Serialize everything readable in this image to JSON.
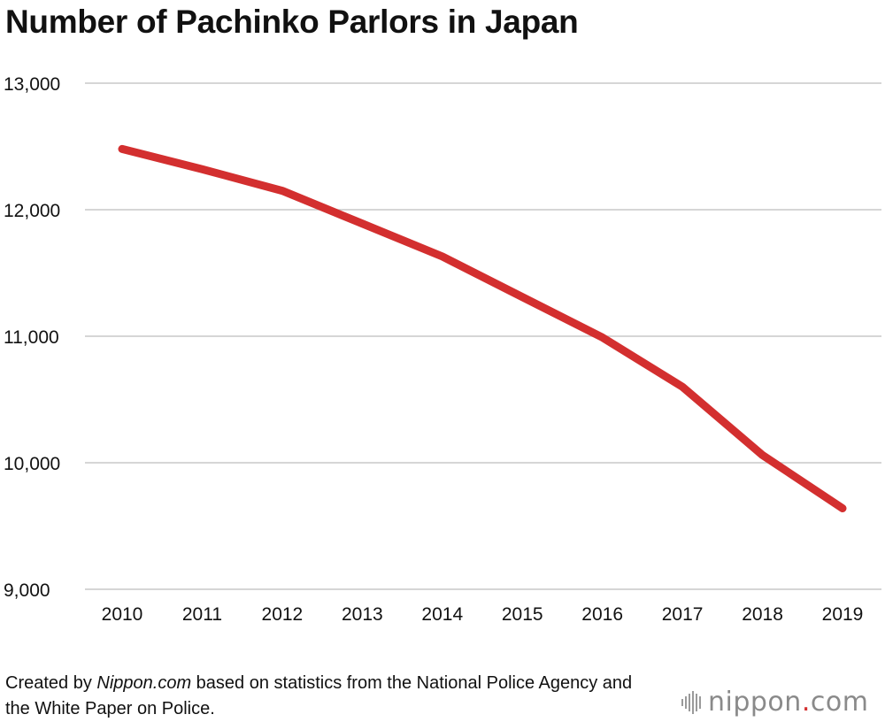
{
  "chart_data": {
    "type": "line",
    "title": "Number of Pachinko Parlors in Japan",
    "xlabel": "",
    "ylabel": "",
    "x": [
      "2010",
      "2011",
      "2012",
      "2013",
      "2014",
      "2015",
      "2016",
      "2017",
      "2018",
      "2019"
    ],
    "series": [
      {
        "values": [
          12480,
          12320,
          12150,
          11890,
          11630,
          11310,
          10990,
          10600,
          10060,
          9640
        ]
      }
    ],
    "ylim": [
      9000,
      13000
    ],
    "yticks": [
      {
        "value": 9000,
        "label": "9,000"
      },
      {
        "value": 10000,
        "label": "10,000"
      },
      {
        "value": 11000,
        "label": "11,000"
      },
      {
        "value": 12000,
        "label": "12,000"
      },
      {
        "value": 13000,
        "label": "13,000"
      }
    ],
    "grid": true,
    "legend": "none",
    "line_color": "#d32f2f",
    "grid_color": "#c8c8c8"
  },
  "footnote": {
    "prefix": "Created by ",
    "source": "Nippon.com",
    "suffix": " based on statistics from the National Police Agency and the White Paper on Police."
  },
  "logo": {
    "name": "nippon",
    "dot": ".",
    "tld": "com"
  }
}
